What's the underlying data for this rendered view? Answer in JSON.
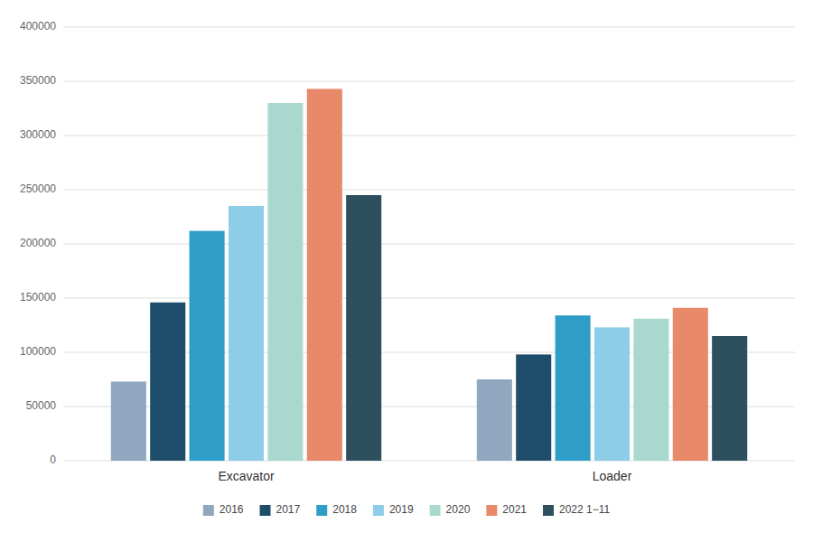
{
  "chart_data": {
    "type": "bar",
    "categories": [
      "Excavator",
      "Loader"
    ],
    "series": [
      {
        "name": "2016",
        "color": "#8fa8bf",
        "values": [
          73000,
          75000
        ]
      },
      {
        "name": "2017",
        "color": "#1e4d6b",
        "values": [
          146000,
          98000
        ]
      },
      {
        "name": "2018",
        "color": "#2e9dc8",
        "values": [
          212000,
          134000
        ]
      },
      {
        "name": "2019",
        "color": "#8dcde8",
        "values": [
          235000,
          123000
        ]
      },
      {
        "name": "2020",
        "color": "#a8d8ce",
        "values": [
          330000,
          131000
        ]
      },
      {
        "name": "2021",
        "color": "#e8896a",
        "values": [
          343000,
          141000
        ]
      },
      {
        "name": "2022 1−11",
        "color": "#2d4f5e",
        "values": [
          245000,
          115000
        ]
      }
    ],
    "ylim": [
      0,
      400000
    ],
    "yticks": [
      0,
      50000,
      100000,
      150000,
      200000,
      250000,
      300000,
      350000,
      400000
    ],
    "grid": true,
    "legend": "bottom"
  }
}
